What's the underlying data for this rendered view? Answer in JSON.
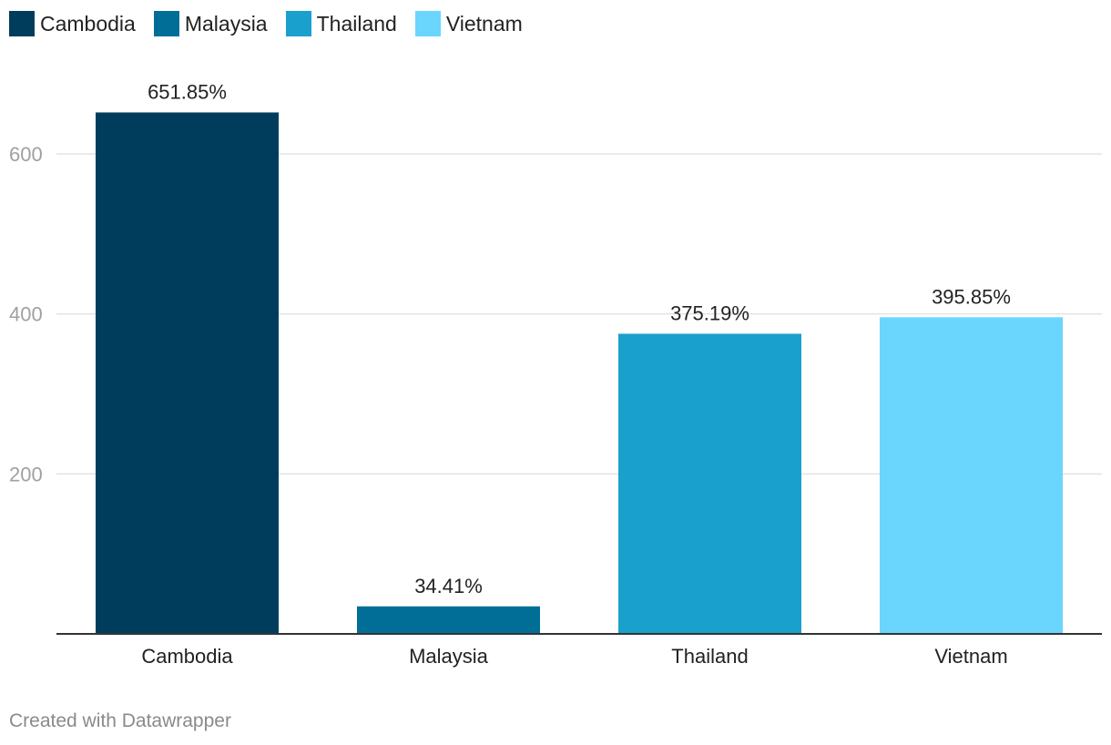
{
  "chart_data": {
    "type": "bar",
    "categories": [
      "Cambodia",
      "Malaysia",
      "Thailand",
      "Vietnam"
    ],
    "values": [
      651.85,
      34.41,
      375.19,
      395.85
    ],
    "value_labels": [
      "651.85%",
      "34.41%",
      "375.19%",
      "395.85%"
    ],
    "colors": [
      "#003d5c",
      "#006e97",
      "#1aa0cc",
      "#6ad6fd"
    ],
    "y_ticks": [
      200,
      400,
      600
    ],
    "ylim": [
      0,
      600
    ],
    "grid": true,
    "legend_position": "top-left",
    "legend": [
      {
        "label": "Cambodia",
        "color": "#003d5c"
      },
      {
        "label": "Malaysia",
        "color": "#006e97"
      },
      {
        "label": "Thailand",
        "color": "#1aa0cc"
      },
      {
        "label": "Vietnam",
        "color": "#6ad6fd"
      }
    ]
  },
  "footer": {
    "credit": "Created with Datawrapper"
  }
}
